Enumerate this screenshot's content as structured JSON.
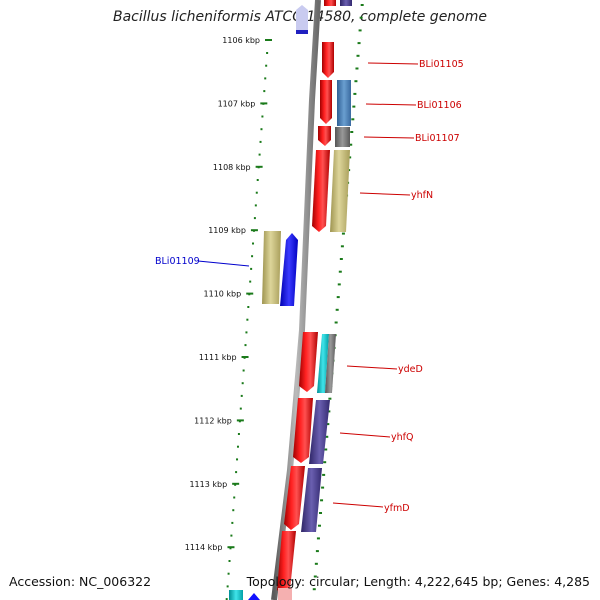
{
  "title": "Bacillus licheniformis ATCC 14580, complete genome",
  "footer": {
    "accession": "Accession: NC_006322",
    "stats": "Topology: circular; Length: 4,222,645 bp; Genes: 4,285"
  },
  "kbp_ticks": [
    {
      "label": "1106 kbp",
      "pos": 1106
    },
    {
      "label": "1107 kbp",
      "pos": 1107
    },
    {
      "label": "1108 kbp",
      "pos": 1108
    },
    {
      "label": "1109 kbp",
      "pos": 1109
    },
    {
      "label": "1110 kbp",
      "pos": 1110
    },
    {
      "label": "1111 kbp",
      "pos": 1111
    },
    {
      "label": "1112 kbp",
      "pos": 1112
    },
    {
      "label": "1113 kbp",
      "pos": 1113
    },
    {
      "label": "1114 kbp",
      "pos": 1114
    }
  ],
  "gene_labels": [
    {
      "name": "BLi01105",
      "color": "#cc0000"
    },
    {
      "name": "BLi01106",
      "color": "#cc0000"
    },
    {
      "name": "BLi01107",
      "color": "#cc0000"
    },
    {
      "name": "yhfN",
      "color": "#cc0000"
    },
    {
      "name": "BLi01109",
      "color": "#0000cc"
    },
    {
      "name": "ydeD",
      "color": "#cc0000"
    },
    {
      "name": "yhfQ",
      "color": "#cc0000"
    },
    {
      "name": "yfmD",
      "color": "#cc0000"
    }
  ],
  "colors": {
    "backbone": "#8a8a8a",
    "tick": "#1a7a1a",
    "cds_red": "#ee0000",
    "steel_blue": "#4a7fb5",
    "olive": "#c8bf7a",
    "navy": "#4a3f8a",
    "cyan": "#12c4c9",
    "blue": "#1010ff",
    "gray": "#777777",
    "lavender": "#c9cbf0",
    "pink": "#f5b0b0"
  }
}
